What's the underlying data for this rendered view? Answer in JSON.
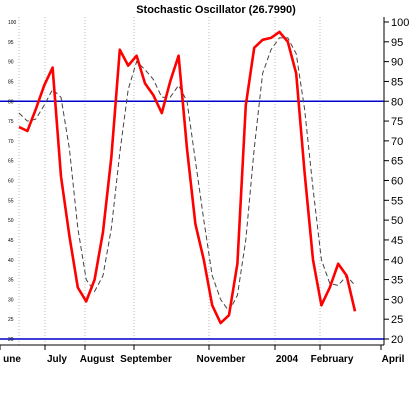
{
  "chart_data": {
    "type": "line",
    "title": "Stochastic Oscillator (26.7990)",
    "ylim": [
      20,
      100
    ],
    "y_ticks": [
      20,
      25,
      30,
      35,
      40,
      45,
      50,
      55,
      60,
      65,
      70,
      75,
      80,
      85,
      90,
      95,
      100
    ],
    "x_tick_labels": [
      "une",
      "July",
      "August",
      "September",
      "November",
      "2004",
      "February",
      "April"
    ],
    "reference_lines": [
      80,
      20
    ],
    "colors": {
      "percent_k": "#ff0000",
      "percent_d": "#444444",
      "reference": "#0000cc",
      "grid": "#bbbbbb"
    },
    "series": [
      {
        "style": "solid",
        "values": [
          73.5,
          72.5,
          78,
          84,
          88.5,
          61,
          46,
          33,
          29.5,
          35,
          47,
          66,
          93,
          89,
          91.5,
          84.5,
          81.5,
          77,
          85,
          91.5,
          68,
          49,
          40,
          28.5,
          24,
          26,
          39,
          79,
          93.5,
          95.5,
          96,
          97.5,
          95,
          87,
          62,
          40,
          28.5,
          33,
          39,
          36,
          27
        ]
      },
      {
        "style": "dashed",
        "values": [
          77,
          75,
          75.5,
          79,
          83,
          81,
          68,
          48,
          35,
          32,
          36,
          48,
          67,
          83,
          90,
          88,
          85.5,
          81,
          81,
          84,
          80,
          65,
          50,
          36,
          30,
          27,
          31,
          45,
          68,
          87,
          93,
          96,
          96,
          92,
          78,
          58,
          40,
          34,
          33.5,
          36,
          33.5
        ]
      }
    ]
  }
}
